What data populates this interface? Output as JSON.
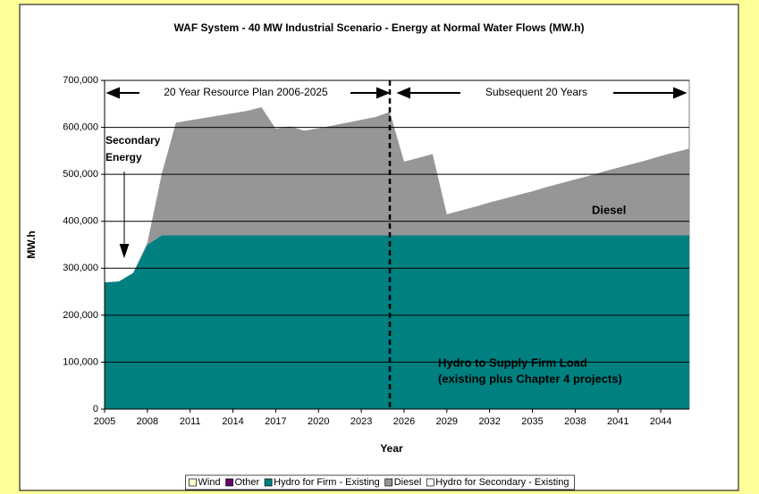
{
  "chart_data": {
    "type": "stacked-area",
    "title": "WAF System - 40 MW Industrial Scenario - Energy at Normal Water Flows (MW.h)",
    "x_label": "Year",
    "y_label": "MW.h",
    "x": [
      2005,
      2006,
      2007,
      2008,
      2009,
      2010,
      2011,
      2012,
      2013,
      2014,
      2015,
      2016,
      2017,
      2018,
      2019,
      2020,
      2021,
      2022,
      2023,
      2024,
      2025,
      2026,
      2027,
      2028,
      2029,
      2030,
      2031,
      2032,
      2033,
      2034,
      2035,
      2036,
      2037,
      2038,
      2039,
      2040,
      2041,
      2042,
      2043,
      2044,
      2045,
      2046
    ],
    "xlim": [
      2005,
      2046
    ],
    "xticks": [
      2005,
      2008,
      2011,
      2014,
      2017,
      2020,
      2023,
      2026,
      2029,
      2032,
      2035,
      2038,
      2041,
      2044
    ],
    "ylim": [
      0,
      700000
    ],
    "yticks": [
      0,
      {
        "value": 100000,
        "label": "100,000"
      },
      {
        "value": 200000,
        "label": "200,000"
      },
      {
        "value": 300000,
        "label": "300,000"
      },
      {
        "value": 400000,
        "label": "400,000"
      },
      {
        "value": 500000,
        "label": "500,000"
      },
      {
        "value": 600000,
        "label": "600,000"
      },
      {
        "value": 700000,
        "label": "700,000"
      }
    ],
    "grid": true,
    "legend": "bottom",
    "vline_x": 2025,
    "series": [
      {
        "name": "Wind",
        "color": "#ffffcc",
        "values": [
          0,
          0,
          0,
          0,
          0,
          0,
          0,
          0,
          0,
          0,
          0,
          0,
          0,
          0,
          0,
          0,
          0,
          0,
          0,
          0,
          0,
          0,
          0,
          0,
          0,
          0,
          0,
          0,
          0,
          0,
          0,
          0,
          0,
          0,
          0,
          0,
          0,
          0,
          0,
          0,
          0,
          0
        ]
      },
      {
        "name": "Other",
        "color": "#660066",
        "values": [
          0,
          0,
          0,
          0,
          0,
          0,
          0,
          0,
          0,
          0,
          0,
          0,
          0,
          0,
          0,
          0,
          0,
          0,
          0,
          0,
          0,
          0,
          0,
          0,
          0,
          0,
          0,
          0,
          0,
          0,
          0,
          0,
          0,
          0,
          0,
          0,
          0,
          0,
          0,
          0,
          0,
          0
        ]
      },
      {
        "name": "Hydro for Firm - Existing",
        "color": "#008080",
        "values": [
          270000,
          272000,
          290000,
          350000,
          370000,
          370000,
          370000,
          370000,
          370000,
          370000,
          370000,
          370000,
          370000,
          370000,
          370000,
          370000,
          370000,
          370000,
          370000,
          370000,
          370000,
          370000,
          370000,
          370000,
          370000,
          370000,
          370000,
          370000,
          370000,
          370000,
          370000,
          370000,
          370000,
          370000,
          370000,
          370000,
          370000,
          370000,
          370000,
          370000,
          370000,
          370000
        ]
      },
      {
        "name": "Diesel",
        "color": "#969696",
        "values": [
          0,
          0,
          0,
          5000,
          130000,
          240000,
          245000,
          250000,
          255000,
          260000,
          265000,
          273000,
          227000,
          232000,
          223000,
          228000,
          234000,
          240000,
          246000,
          252000,
          263000,
          157000,
          165000,
          173000,
          45000,
          53000,
          61000,
          70000,
          78000,
          86000,
          94000,
          103000,
          111000,
          119000,
          127000,
          136000,
          144000,
          152000,
          160000,
          169000,
          177000,
          185000
        ]
      },
      {
        "name": "Hydro for Secondary - Existing",
        "color": "#ffffff",
        "values": [
          20000,
          25000,
          25000,
          15000,
          0,
          0,
          0,
          0,
          0,
          0,
          0,
          0,
          0,
          0,
          0,
          0,
          0,
          0,
          0,
          0,
          0,
          0,
          0,
          0,
          0,
          0,
          0,
          0,
          0,
          0,
          0,
          0,
          0,
          0,
          0,
          0,
          0,
          0,
          0,
          0,
          0,
          0
        ]
      }
    ],
    "annotations": [
      "20 Year Resource Plan 2006-2025",
      "Subsequent 20 Years",
      "Secondary",
      "Energy",
      "Diesel",
      "Hydro to Supply Firm Load",
      "(existing plus Chapter 4 projects)"
    ]
  }
}
